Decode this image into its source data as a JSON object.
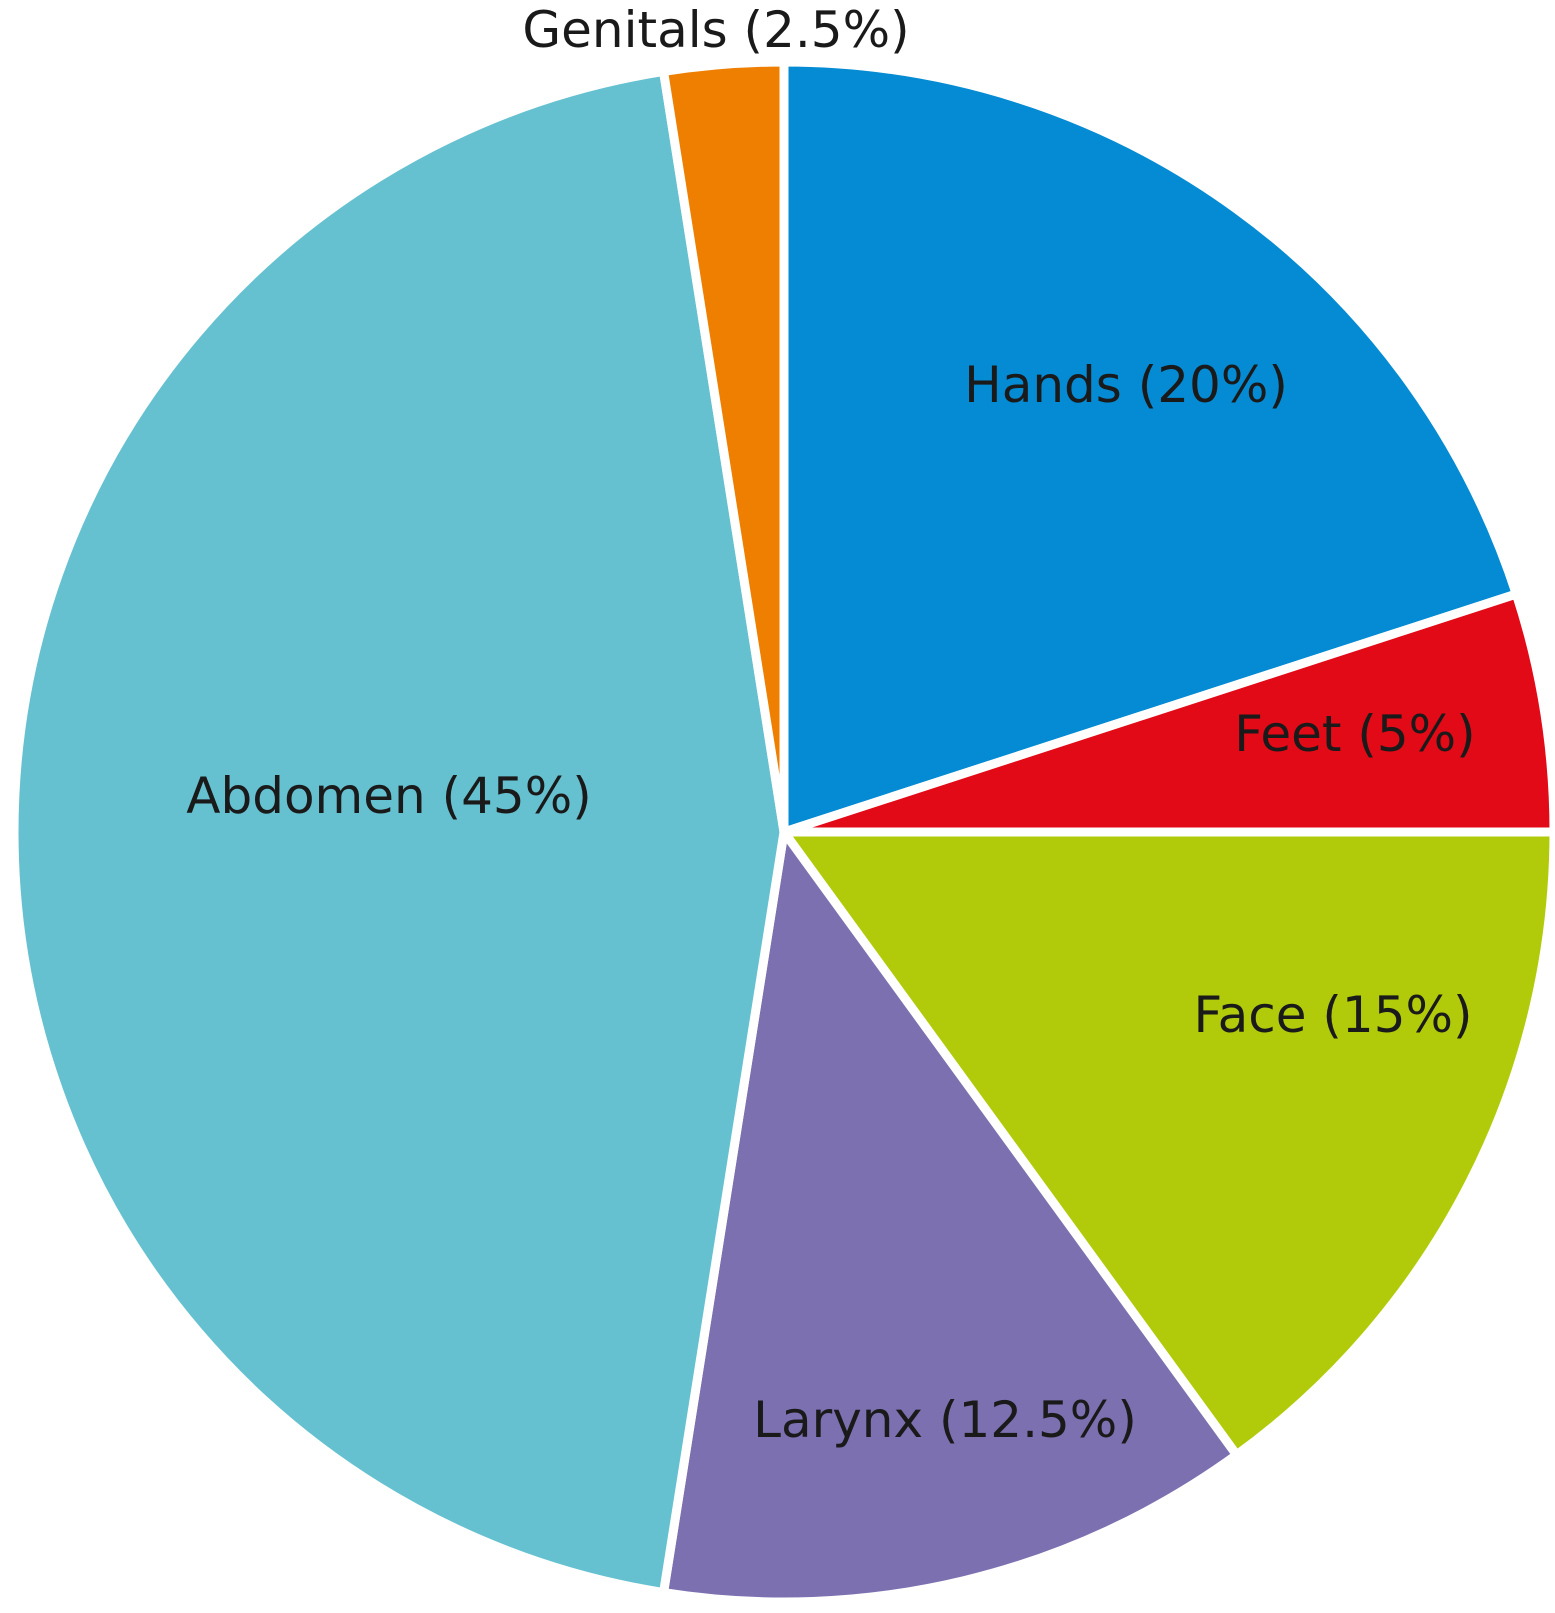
{
  "chart_data": {
    "type": "pie",
    "start_angle_deg": 0,
    "direction": "clockwise",
    "slices": [
      {
        "label": "Hands (20%)",
        "name": "Hands",
        "value": 20,
        "color": "#058bd3"
      },
      {
        "label": "Feet (5%)",
        "name": "Feet",
        "value": 5,
        "color": "#e20a17"
      },
      {
        "label": "Face (15%)",
        "name": "Face",
        "value": 15,
        "color": "#b1cb0b"
      },
      {
        "label": "Larynx (12.5%)",
        "name": "Larynx",
        "value": 12.5,
        "color": "#7d70b0"
      },
      {
        "label": "Abdomen (45%)",
        "name": "Abdomen",
        "value": 45,
        "color": "#65c1d0"
      },
      {
        "label": "Genitals (2.5%)",
        "name": "Genitals",
        "value": 2.5,
        "color": "#ee7f00"
      }
    ]
  }
}
